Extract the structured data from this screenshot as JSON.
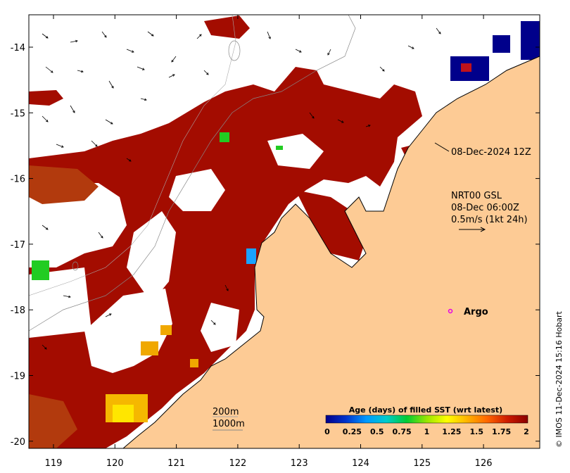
{
  "map": {
    "x_ticks": [
      "119",
      "120",
      "121",
      "122",
      "123",
      "124",
      "125",
      "126"
    ],
    "y_ticks": [
      "-14",
      "-15",
      "-16",
      "-17",
      "-18",
      "-19",
      "-20"
    ],
    "timestamp_label": "08-Dec-2024 12Z",
    "current_legend": {
      "line1": "NRT00 GSL",
      "line2": "08-Dec 06:00Z",
      "line3": "0.5m/s (1kt 24h)"
    },
    "argo_label": "Argo",
    "contour_labels": {
      "c200": "200m",
      "c1000": "1000m"
    },
    "credit": "© IMOS 11-Dec-2024 15:16 Hobart",
    "colors": {
      "land": "#fdcb95",
      "sst_fill": "#a30c00",
      "sst_old": "#b23a0d",
      "argo": "#e600e6"
    }
  },
  "colorbar": {
    "title": "Age (days) of filled SST (wrt latest)",
    "tick_labels": [
      "0",
      "0.25",
      "0.5",
      "0.75",
      "1",
      "1.25",
      "1.5",
      "1.75",
      "2"
    ],
    "range": [
      0,
      2
    ],
    "gradient": [
      "#00008b",
      "#0033cc",
      "#0099ff",
      "#00cccc",
      "#00cc33",
      "#99e600",
      "#ffff00",
      "#ffb300",
      "#ff6600",
      "#cc1a00",
      "#8b0000"
    ]
  }
}
